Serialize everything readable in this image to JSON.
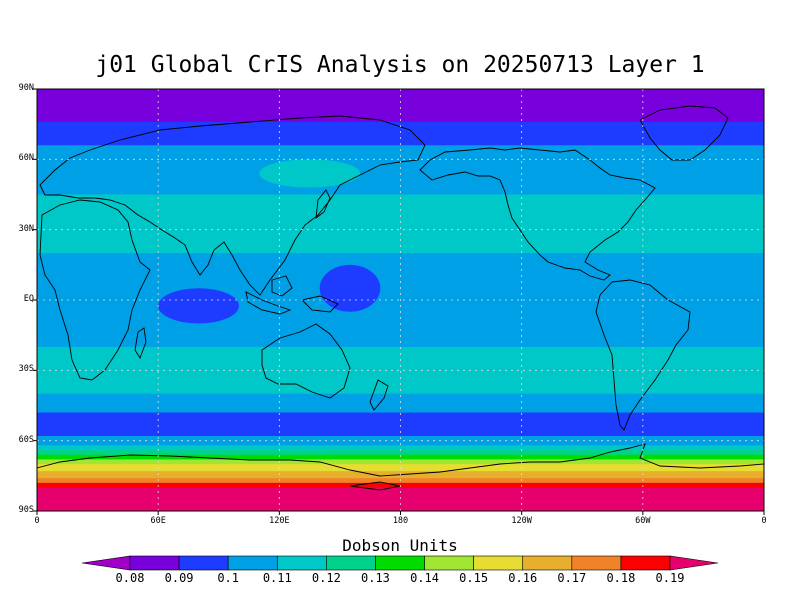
{
  "title": "j01 Global CrIS Analysis on 20250713 Layer 1",
  "y_ticks": [
    "90N",
    "60N",
    "30N",
    "EQ",
    "30S",
    "60S",
    "90S"
  ],
  "x_ticks": [
    "0",
    "60E",
    "120E",
    "180",
    "120W",
    "60W",
    "0"
  ],
  "colorbar": {
    "title": "Dobson Units",
    "labels": [
      "0.08",
      "0.09",
      "0.1",
      "0.11",
      "0.12",
      "0.13",
      "0.14",
      "0.15",
      "0.16",
      "0.17",
      "0.18",
      "0.19"
    ],
    "colors": [
      "#a000c8",
      "#7800dc",
      "#1e3cff",
      "#00a0e6",
      "#00c8c8",
      "#00d28c",
      "#00dc00",
      "#a0e632",
      "#e6dc32",
      "#e6af2d",
      "#f08228",
      "#fa0000",
      "#e6006e"
    ]
  },
  "map": {
    "grid": "dotted",
    "lat_bands": [
      {
        "lat": [
          90,
          76
        ],
        "level": 1
      },
      {
        "lat": [
          76,
          66
        ],
        "level": 2
      },
      {
        "lat": [
          66,
          45
        ],
        "level": 3
      },
      {
        "lat": [
          45,
          20
        ],
        "level": 4
      },
      {
        "lat": [
          20,
          -20
        ],
        "level": 3
      },
      {
        "lat": [
          -20,
          -40
        ],
        "level": 4
      },
      {
        "lat": [
          -40,
          -48
        ],
        "level": 3
      },
      {
        "lat": [
          -48,
          -58
        ],
        "level": 2
      },
      {
        "lat": [
          -58,
          -62
        ],
        "level": 3
      },
      {
        "lat": [
          -62,
          -64
        ],
        "level": 4
      },
      {
        "lat": [
          -64,
          -66
        ],
        "level": 5
      },
      {
        "lat": [
          -66,
          -68
        ],
        "level": 6
      },
      {
        "lat": [
          -68,
          -70
        ],
        "level": 7
      },
      {
        "lat": [
          -70,
          -73
        ],
        "level": 8
      },
      {
        "lat": [
          -73,
          -76
        ],
        "level": 9
      },
      {
        "lat": [
          -76,
          -78
        ],
        "level": 10
      },
      {
        "lat": [
          -78,
          -80
        ],
        "level": 11
      },
      {
        "lat": [
          -80,
          -90
        ],
        "level": 12
      }
    ],
    "patches": [
      {
        "lon": [
          140,
          170
        ],
        "lat": [
          15,
          -5
        ],
        "level": 2
      },
      {
        "lon": [
          60,
          100
        ],
        "lat": [
          5,
          -10
        ],
        "level": 2
      },
      {
        "lon": [
          110,
          160
        ],
        "lat": [
          60,
          48
        ],
        "level": 4
      }
    ]
  }
}
